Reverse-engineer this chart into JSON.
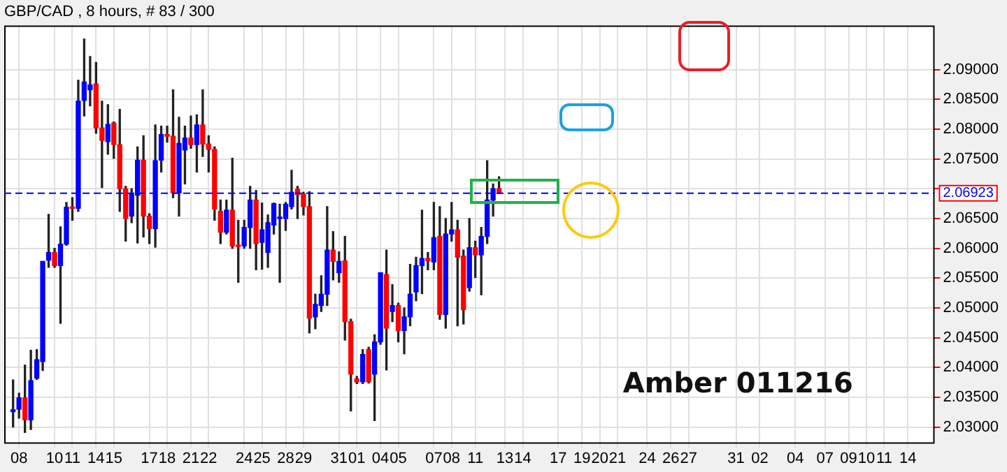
{
  "chart_data": {
    "type": "candlestick",
    "title": "GBP/CAD , 8 hours, # 83 / 300",
    "categories": [
      null,
      null,
      "08",
      null,
      null,
      null,
      null,
      null,
      "10",
      null,
      null,
      "11",
      null,
      null,
      null,
      "14",
      null,
      null,
      "15",
      null,
      null,
      null,
      null,
      null,
      "17",
      null,
      null,
      "18",
      null,
      null,
      null,
      "21",
      null,
      null,
      "22",
      null,
      null,
      null,
      null,
      null,
      "24",
      null,
      null,
      "25",
      null,
      null,
      null,
      "28",
      null,
      null,
      "29",
      null,
      null,
      null,
      null,
      null,
      "31",
      null,
      null,
      "01",
      null,
      null,
      null,
      "04",
      null,
      null,
      "05",
      null,
      null,
      null,
      null,
      null,
      "07",
      null,
      null,
      "08",
      null,
      null,
      null,
      "11",
      null,
      null,
      null,
      null,
      "13",
      null,
      null,
      "14",
      null,
      null,
      null,
      null,
      null,
      "17",
      null,
      null,
      null,
      "19",
      null,
      null,
      "20",
      null,
      null,
      "21",
      null,
      null,
      null,
      null,
      "24",
      null,
      null,
      null,
      "26",
      null,
      null,
      "27",
      null,
      null,
      null,
      null,
      null,
      null,
      null,
      "31",
      null,
      null,
      null,
      "02",
      null,
      null,
      null,
      null,
      null,
      "04",
      null,
      null,
      null,
      null,
      "07",
      null,
      null,
      null,
      "09",
      null,
      null,
      "10",
      null,
      null,
      "11",
      null,
      null,
      null,
      "14",
      null,
      null,
      null,
      null
    ],
    "ohlc": [
      null,
      [
        2.0326,
        2.0379,
        2.03,
        2.0329
      ],
      [
        2.033,
        2.0357,
        2.0315,
        2.0349
      ],
      [
        2.0349,
        2.0404,
        2.0291,
        2.0312
      ],
      [
        2.0312,
        2.0429,
        2.0296,
        2.0378
      ],
      [
        2.0382,
        2.043,
        2.038,
        2.0413
      ],
      [
        2.041,
        2.0578,
        2.0395,
        2.0578
      ],
      [
        2.058,
        2.0657,
        2.0568,
        2.0593
      ],
      [
        2.0593,
        2.06,
        2.0568,
        2.0571
      ],
      [
        2.0571,
        2.0636,
        2.0474,
        2.0607
      ],
      [
        2.0607,
        2.0677,
        2.0605,
        2.0669
      ],
      [
        2.0669,
        2.0685,
        2.0647,
        2.0667
      ],
      [
        2.0667,
        2.0882,
        2.0662,
        2.0847
      ],
      [
        2.0848,
        2.0951,
        2.0822,
        2.0879
      ],
      [
        2.0866,
        2.0922,
        2.0839,
        2.0874
      ],
      [
        2.0876,
        2.0912,
        2.0793,
        2.0802
      ],
      [
        2.0802,
        2.0847,
        2.0702,
        2.0781
      ],
      [
        2.0779,
        2.0841,
        2.0758,
        2.0808
      ],
      [
        2.081,
        2.0812,
        2.0751,
        2.0774
      ],
      [
        2.0774,
        2.0833,
        2.0662,
        2.07
      ],
      [
        2.07,
        2.0704,
        2.0612,
        2.065
      ],
      [
        2.0654,
        2.07,
        2.0643,
        2.0691
      ],
      [
        2.0689,
        2.077,
        2.0609,
        2.0748
      ],
      [
        2.0748,
        2.0789,
        2.0619,
        2.0654
      ],
      [
        2.0654,
        2.0658,
        2.0608,
        2.0633
      ],
      [
        2.0633,
        2.0807,
        2.0602,
        2.0747
      ],
      [
        2.0748,
        2.0805,
        2.0728,
        2.0791
      ],
      [
        2.0791,
        2.0805,
        2.0778,
        2.0788
      ],
      [
        2.0788,
        2.0866,
        2.0685,
        2.0693
      ],
      [
        2.0693,
        2.082,
        2.0654,
        2.0776
      ],
      [
        2.0765,
        2.0805,
        2.0708,
        2.0785
      ],
      [
        2.0785,
        2.0822,
        2.0768,
        2.0774
      ],
      [
        2.0774,
        2.0824,
        2.0728,
        2.0807
      ],
      [
        2.0807,
        2.0866,
        2.0754,
        2.0775
      ],
      [
        2.0775,
        2.0789,
        2.0728,
        2.0766
      ],
      [
        2.0766,
        2.077,
        2.0647,
        2.0666
      ],
      [
        2.0662,
        2.0681,
        2.0608,
        2.0627
      ],
      [
        2.0627,
        2.0681,
        2.0624,
        2.0664
      ],
      [
        2.0664,
        2.0751,
        2.06,
        2.0604
      ],
      [
        2.0604,
        2.0647,
        2.0543,
        2.0603
      ],
      [
        2.0604,
        2.0647,
        2.06,
        2.0635
      ],
      [
        2.0635,
        2.0704,
        2.06,
        2.0681
      ],
      [
        2.0681,
        2.0697,
        2.0564,
        2.0608
      ],
      [
        2.061,
        2.0676,
        2.0565,
        2.0631
      ],
      [
        2.0593,
        2.0656,
        2.0568,
        2.0643
      ],
      [
        2.0639,
        2.0676,
        2.0624,
        2.0675
      ],
      [
        2.065,
        2.0674,
        2.0543,
        2.0652
      ],
      [
        2.065,
        2.0677,
        2.063,
        2.0674
      ],
      [
        2.067,
        2.0731,
        2.0666,
        2.0694
      ],
      [
        2.0699,
        2.0704,
        2.065,
        2.069
      ],
      [
        2.0691,
        2.0694,
        2.0656,
        2.067
      ],
      [
        2.067,
        2.0695,
        2.0458,
        2.0483
      ],
      [
        2.0485,
        2.0523,
        2.0465,
        2.0506
      ],
      [
        2.0504,
        2.0554,
        2.0494,
        2.0523
      ],
      [
        2.0523,
        2.067,
        2.0504,
        2.0597
      ],
      [
        2.0597,
        2.0628,
        2.0547,
        2.0578
      ],
      [
        2.0559,
        2.0594,
        2.0543,
        2.0578
      ],
      [
        2.0579,
        2.062,
        2.0446,
        2.0477
      ],
      [
        2.0477,
        2.0481,
        2.0327,
        2.0389
      ],
      [
        2.0381,
        2.0385,
        2.0373,
        2.0376
      ],
      [
        2.0376,
        2.043,
        2.0373,
        2.0422
      ],
      [
        2.043,
        2.0434,
        2.0374,
        2.0376
      ],
      [
        2.0389,
        2.0455,
        2.0311,
        2.0443
      ],
      [
        2.0443,
        2.0559,
        2.0439,
        2.0559
      ],
      [
        2.0556,
        2.0597,
        2.0396,
        2.0466
      ],
      [
        2.0494,
        2.0539,
        2.0477,
        2.0504
      ],
      [
        2.0504,
        2.0508,
        2.0443,
        2.0462
      ],
      [
        2.0462,
        2.05,
        2.0423,
        2.0485
      ],
      [
        2.0485,
        2.0573,
        2.047,
        2.0523
      ],
      [
        2.0527,
        2.0585,
        2.0512,
        2.0571
      ],
      [
        2.0571,
        2.0664,
        2.0524,
        2.0583
      ],
      [
        2.0583,
        2.0593,
        2.0564,
        2.0579
      ],
      [
        2.0577,
        2.0677,
        2.0564,
        2.0618
      ],
      [
        2.062,
        2.067,
        2.0481,
        2.0489
      ],
      [
        2.0489,
        2.065,
        2.0466,
        2.0624
      ],
      [
        2.0624,
        2.0677,
        2.0612,
        2.0631
      ],
      [
        2.0631,
        2.0647,
        2.047,
        2.0585
      ],
      [
        2.0587,
        2.0597,
        2.0473,
        2.0497
      ],
      [
        2.0534,
        2.065,
        2.0528,
        2.0601
      ],
      [
        2.0601,
        2.0612,
        2.0551,
        2.0589
      ],
      [
        2.0589,
        2.0635,
        2.0522,
        2.062
      ],
      [
        2.062,
        2.0747,
        2.0608,
        2.0681
      ],
      [
        2.0681,
        2.0708,
        2.0654,
        2.07
      ],
      [
        2.07,
        2.072,
        2.0692,
        2.0692
      ],
      null,
      null,
      null,
      null,
      null,
      null,
      null,
      null,
      null,
      null,
      null,
      null,
      null,
      null,
      null,
      null,
      null,
      null,
      null,
      null,
      null,
      null,
      null,
      null,
      null,
      null,
      null,
      null,
      null,
      null,
      null,
      null,
      null,
      null,
      null,
      null,
      null,
      null,
      null,
      null,
      null,
      null,
      null,
      null,
      null,
      null,
      null,
      null,
      null,
      null,
      null,
      null,
      null,
      null,
      null,
      null,
      null,
      null,
      null,
      null,
      null,
      null,
      null,
      null,
      null,
      null,
      null,
      null,
      null,
      null,
      null,
      null,
      null
    ],
    "colors": [
      null,
      "#0000ff",
      "#0000ff",
      "#ff0000",
      "#0000ff",
      "#0000ff",
      "#0000ff",
      "#0000ff",
      "#ff0000",
      "#0000ff",
      "#0000ff",
      "#ff0000",
      "#0000ff",
      "#0000ff",
      "#0000ff",
      "#ff0000",
      "#ff0000",
      "#0000ff",
      "#ff0000",
      "#ff0000",
      "#ff0000",
      "#0000ff",
      "#0000ff",
      "#ff0000",
      "#ff0000",
      "#0000ff",
      "#0000ff",
      "#ff0000",
      "#ff0000",
      "#0000ff",
      "#0000ff",
      "#ff0000",
      "#0000ff",
      "#ff0000",
      "#ff0000",
      "#ff0000",
      "#ff0000",
      "#0000ff",
      "#ff0000",
      "#ff0000",
      "#0000ff",
      "#0000ff",
      "#ff0000",
      "#0000ff",
      "#0000ff",
      "#0000ff",
      "#0000ff",
      "#0000ff",
      "#0000ff",
      "#ff0000",
      "#ff0000",
      "#ff0000",
      "#0000ff",
      "#0000ff",
      "#0000ff",
      "#ff0000",
      "#0000ff",
      "#ff0000",
      "#ff0000",
      "#ff0000",
      "#0000ff",
      "#ff0000",
      "#0000ff",
      "#0000ff",
      "#ff0000",
      "#0000ff",
      "#ff0000",
      "#0000ff",
      "#0000ff",
      "#0000ff",
      "#0000ff",
      "#ff0000",
      "#0000ff",
      "#ff0000",
      "#0000ff",
      "#0000ff",
      "#ff0000",
      "#ff0000",
      "#0000ff",
      "#ff0000",
      "#0000ff",
      "#0000ff",
      "#0000ff",
      "#ff0000",
      null,
      null,
      null,
      null,
      null,
      null,
      null,
      null,
      null,
      null,
      null,
      null,
      null,
      null,
      null,
      null,
      null,
      null,
      null,
      null,
      null,
      null,
      null,
      null,
      null,
      null,
      null,
      null,
      null,
      null,
      null,
      null,
      null,
      null,
      null,
      null,
      null,
      null,
      null,
      null,
      null,
      null,
      null,
      null,
      null,
      null,
      null,
      null,
      null,
      null,
      null,
      null,
      null,
      null,
      null,
      null,
      null,
      null,
      null,
      null,
      null,
      null,
      null,
      null,
      null,
      null,
      null,
      null,
      null,
      null,
      null,
      null,
      null
    ],
    "ylim": [
      2.0272,
      2.0974
    ],
    "yticks": [
      {
        "value": 2.03,
        "label": "2.03000"
      },
      {
        "value": 2.035,
        "label": "2.03500"
      },
      {
        "value": 2.04,
        "label": "2.04000"
      },
      {
        "value": 2.045,
        "label": "2.04500"
      },
      {
        "value": 2.05,
        "label": "2.05000"
      },
      {
        "value": 2.055,
        "label": "2.05500"
      },
      {
        "value": 2.06,
        "label": "2.06000"
      },
      {
        "value": 2.065,
        "label": "2.06500"
      },
      {
        "value": 2.07,
        "label": null
      },
      {
        "value": 2.075,
        "label": "2.07500"
      },
      {
        "value": 2.08,
        "label": "2.08000"
      },
      {
        "value": 2.085,
        "label": "2.08500"
      },
      {
        "value": 2.09,
        "label": "2.09000"
      }
    ],
    "ref_lines": [
      {
        "axis": "y",
        "value": 2.06923,
        "label": "2.06923",
        "color": "#0000ff",
        "line_style": "dashed"
      }
    ],
    "annotations": [
      "Amber 011216"
    ],
    "grid": true,
    "legend": false
  }
}
